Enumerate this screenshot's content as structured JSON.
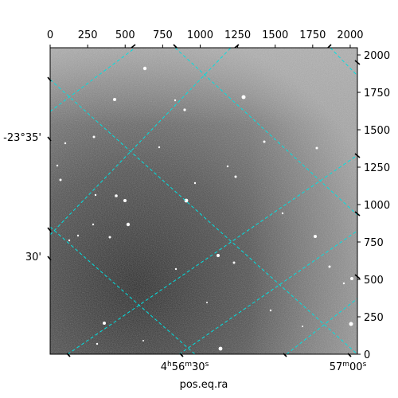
{
  "figure": {
    "xlabel": "pos.eq.ra"
  },
  "top_axis": {
    "tick_labels": [
      "0",
      "250",
      "500",
      "750",
      "1000",
      "1250",
      "1500",
      "1750",
      "2000"
    ],
    "values": [
      0,
      250,
      500,
      750,
      1000,
      1250,
      1500,
      1750,
      2000
    ]
  },
  "right_axis": {
    "tick_labels": [
      "0",
      "250",
      "500",
      "750",
      "1000",
      "1250",
      "1500",
      "1750",
      "2000"
    ],
    "values": [
      0,
      250,
      500,
      750,
      1000,
      1250,
      1500,
      1750,
      2000
    ]
  },
  "dec_labels": [
    {
      "text": "-23°35'"
    },
    {
      "text": "30'"
    }
  ],
  "ra_labels": [
    {
      "h": "4",
      "hu": "h",
      "m": "56",
      "mu": "m",
      "s": "30",
      "su": "s"
    },
    {
      "h": "57",
      "hu": "m",
      "m": "00",
      "mu": "s",
      "s": "",
      "su": ""
    }
  ],
  "colors": {
    "grid": "#00e0e0",
    "image_dark": "#2a2a2a",
    "image_light": "#a8a8a8"
  }
}
